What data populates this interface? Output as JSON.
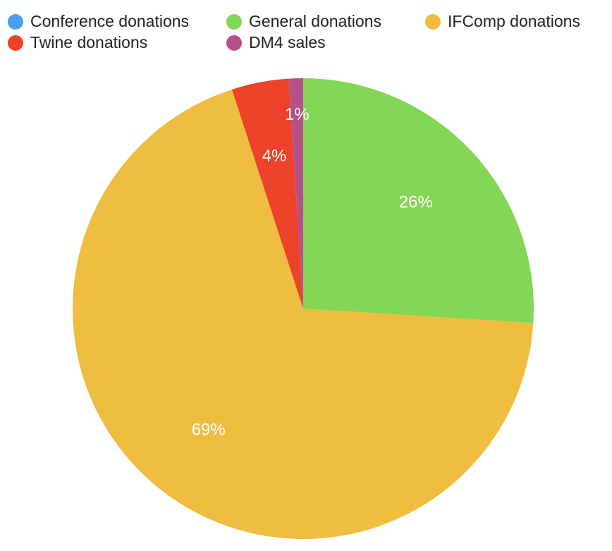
{
  "chart_data": {
    "type": "pie",
    "categories": [
      "Conference donations",
      "General donations",
      "IFComp donations",
      "Twine donations",
      "DM4 sales"
    ],
    "values": [
      0,
      26,
      69,
      4,
      1
    ],
    "value_labels": [
      null,
      "26%",
      "69%",
      "4%",
      "1%"
    ],
    "colors": [
      "#4a9ff5",
      "#84d656",
      "#efbd40",
      "#eb4229",
      "#b6508a"
    ],
    "legend": "top"
  }
}
